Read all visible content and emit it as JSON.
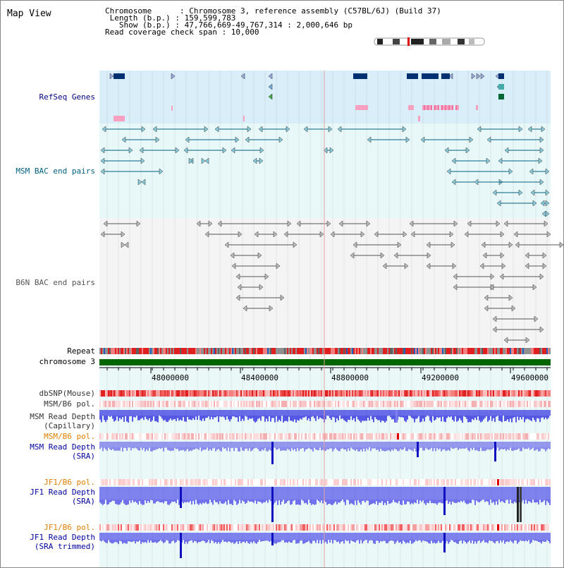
{
  "title": "Map View",
  "info": {
    "chromosome": "Chromosome      : Chromosome 3, reference assembly (C57BL/6J) (Build 37)",
    "length": " Length (b.p.) : 159,599,783",
    "show": "   Show (b.p.) : 47,766,669-49,767,314 : 2,000,646 bp",
    "coverage": "Read coverage check span : 10,000"
  },
  "tracks": {
    "refseq": "RefSeq Genes",
    "msm_bac": "MSM BAC end pairs",
    "b6n_bac": "B6N BAC end pairs",
    "repeat": "Repeat",
    "chrom": "chromosome 3",
    "dbsnp": "dbSNP(Mouse)",
    "msm_b6_pol_1": "MSM/B6 pol.",
    "msm_depth_cap_1": "MSM Read Depth",
    "msm_depth_cap_2": "(Capillary)",
    "msm_b6_pol_2": "MSM/B6 pol.",
    "msm_depth_sra_1": "MSM Read Depth",
    "msm_depth_sra_2": "(SRA)",
    "jf1_b6_pol_1": "JF1/B6 pol.",
    "jf1_depth_sra_1": "JF1 Read Depth",
    "jf1_depth_sra_2": "(SRA)",
    "jf1_b6_pol_2": "JF1/B6 pol.",
    "jf1_depth_trim_1": "JF1 Read Depth",
    "jf1_depth_trim_2": "(SRA trimmed)"
  },
  "axis_ticks": [
    "48000000",
    "48400000",
    "48800000",
    "49200000",
    "49600000"
  ],
  "colors": {
    "refseq_label": "#000080",
    "msm_label": "#006080",
    "b6n_label": "#555555",
    "pol_label": "#e08000",
    "depth_label": "#0000a0",
    "refseq_bg": "#d8eef8",
    "msm_bg": "#e8f8f8",
    "chrom_bar": "#006600",
    "depth_blue": "#4040e0"
  }
}
